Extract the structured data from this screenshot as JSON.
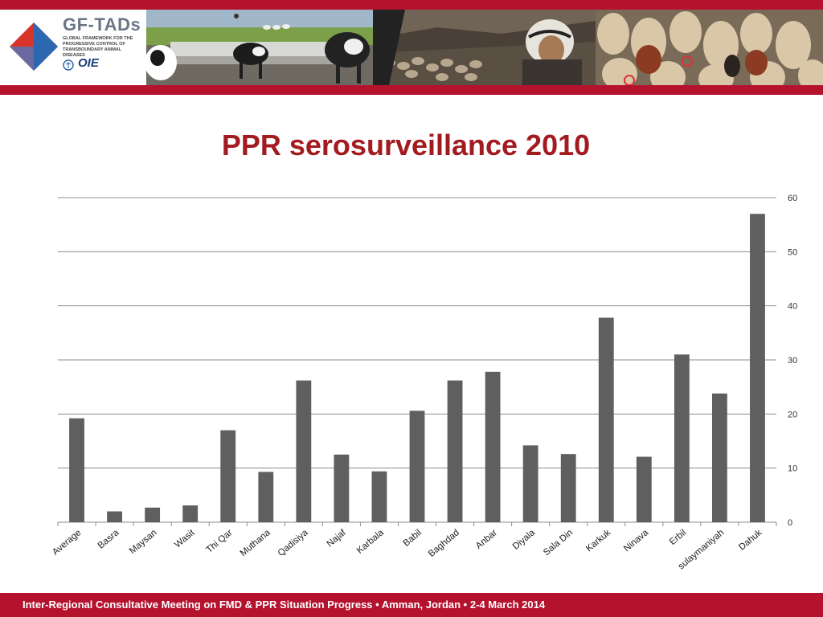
{
  "header": {
    "logo": {
      "title": "GF-TADs",
      "subtitle": "Global Framework for the Progressive Control of Transboundary Animal Diseases",
      "partner": "OIE"
    },
    "photos": [
      "cows-at-trough",
      "herder-with-sheep",
      "sheep-flock"
    ]
  },
  "slide": {
    "title": "PPR serosurveillance 2010"
  },
  "chart_data": {
    "type": "bar",
    "title": "",
    "xlabel": "",
    "ylabel": "",
    "categories": [
      "Average",
      "Basra",
      "Maysan",
      "Wasit",
      "Thi Qar",
      "Muthana",
      "Qadisiya",
      "Najaf",
      "Karbala",
      "Babil",
      "Baghdad",
      "Anbar",
      "Diyala",
      "Sala Din",
      "Karkuk",
      "Ninava",
      "Erbil",
      "sulaymaniyah",
      "Dahuk"
    ],
    "values": [
      19.2,
      2.0,
      2.7,
      3.1,
      17.0,
      9.3,
      26.2,
      12.5,
      9.4,
      20.6,
      26.2,
      27.8,
      14.2,
      12.6,
      37.8,
      12.1,
      31.0,
      23.8,
      57.0
    ],
    "ylim": [
      0,
      60
    ],
    "yticks": [
      0,
      10,
      20,
      30,
      40,
      50,
      60
    ],
    "y_axis_side": "right",
    "grid": true,
    "bar_color": "#5f5f5f"
  },
  "footer": {
    "text": "Inter-Regional Consultative Meeting on FMD & PPR Situation Progress  •  Amman, Jordan  •  2-4 March 2014"
  }
}
